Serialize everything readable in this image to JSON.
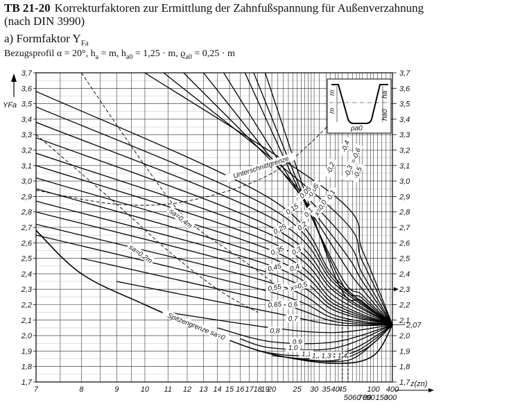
{
  "header": {
    "table_id": "TB 21-20",
    "title_line1": "Korrekturfaktoren zur Ermittlung der Zahnfußspannung für Außenverzahnung",
    "title_line2": "(nach DIN 3990)",
    "section": "a) Formfaktor Y",
    "section_sub": "Fa",
    "profile": "Bezugsprofil α = 20°, h",
    "profile_parts": [
      "a",
      " = m, h",
      "a0",
      " = 1,25 · m, ϱ",
      "a0",
      " = 0,25 · m"
    ]
  },
  "chart_data": {
    "type": "line",
    "title": "Formfaktor YFa",
    "xlabel": "z(zn)",
    "ylabel": "YFa",
    "x_scale": "reciprocal",
    "ylim": [
      1.7,
      3.7
    ],
    "y_ticks": [
      "1,7",
      "1,8",
      "1,9",
      "2,0",
      "2,1",
      "2,2",
      "2,3",
      "2,4",
      "2,5",
      "2,6",
      "2,7",
      "2,8",
      "2,9",
      "3,0",
      "3,1",
      "3,2",
      "3,3",
      "3,4",
      "3,5",
      "3,6",
      "3,7"
    ],
    "x_ticks_upper": [
      {
        "z": 7,
        "label": "7"
      },
      {
        "z": 8,
        "label": "8"
      },
      {
        "z": 9,
        "label": "9"
      },
      {
        "z": 10,
        "label": "10"
      },
      {
        "z": 11,
        "label": "11"
      },
      {
        "z": 12,
        "label": "12"
      },
      {
        "z": 13,
        "label": "13"
      },
      {
        "z": 14,
        "label": "14"
      },
      {
        "z": 15,
        "label": "15"
      },
      {
        "z": 16,
        "label": "16"
      },
      {
        "z": 17,
        "label": "17"
      },
      {
        "z": 18,
        "label": "18"
      },
      {
        "z": 19,
        "label": "19"
      },
      {
        "z": 20,
        "label": "20"
      },
      {
        "z": 25,
        "label": "25"
      },
      {
        "z": 30,
        "label": "30"
      },
      {
        "z": 35,
        "label": "35"
      },
      {
        "z": 40,
        "label": "40"
      },
      {
        "z": 45,
        "label": "45"
      },
      {
        "z": 100,
        "label": "100"
      },
      {
        "z": 400,
        "label": "400"
      }
    ],
    "x_ticks_lower": [
      {
        "z": 50,
        "label": "50"
      },
      {
        "z": 60,
        "label": "60"
      },
      {
        "z": 70,
        "label": "70"
      },
      {
        "z": 80,
        "label": "80"
      },
      {
        "z": 90,
        "label": "90"
      },
      {
        "z": 150,
        "label": "150"
      },
      {
        "z": 300,
        "label": "300"
      }
    ],
    "x_grid_values": [
      7,
      7.5,
      8,
      8.5,
      9,
      9.5,
      10,
      11,
      12,
      13,
      14,
      15,
      16,
      17,
      18,
      19,
      20,
      21,
      22,
      23,
      24,
      25,
      26,
      27,
      28,
      29,
      30,
      32,
      35,
      37,
      40,
      42,
      45,
      50,
      55,
      60,
      65,
      70,
      80,
      90,
      100,
      120,
      150,
      200,
      300,
      400
    ],
    "y_right_extra": "2,07",
    "series": [
      {
        "name": "-0,6",
        "points": [
          [
            10,
            3.7
          ],
          [
            40,
            2.9
          ],
          [
            70,
            2.55
          ],
          [
            400,
            2.07
          ]
        ]
      },
      {
        "name": "-0,5",
        "points": [
          [
            10.8,
            3.7
          ],
          [
            40,
            2.8
          ],
          [
            70,
            2.48
          ],
          [
            400,
            2.07
          ]
        ]
      },
      {
        "name": "-0,4",
        "points": [
          [
            11.8,
            3.7
          ],
          [
            40,
            2.7
          ],
          [
            70,
            2.4
          ],
          [
            400,
            2.07
          ]
        ]
      },
      {
        "name": "-0,3",
        "points": [
          [
            13,
            3.7
          ],
          [
            40,
            2.62
          ],
          [
            70,
            2.35
          ],
          [
            400,
            2.07
          ]
        ]
      },
      {
        "name": "-0,2",
        "points": [
          [
            14.5,
            3.7
          ],
          [
            40,
            2.55
          ],
          [
            70,
            2.3
          ],
          [
            400,
            2.07
          ]
        ]
      },
      {
        "name": "-0,1",
        "points": [
          [
            16.5,
            3.7
          ],
          [
            40,
            2.45
          ],
          [
            70,
            2.26
          ],
          [
            400,
            2.07
          ]
        ]
      },
      {
        "name": "-0,05",
        "points": [
          [
            17.5,
            3.7
          ],
          [
            40,
            2.42
          ],
          [
            70,
            2.24
          ],
          [
            400,
            2.07
          ]
        ]
      },
      {
        "name": "x=0,0",
        "points": [
          [
            19,
            3.7
          ],
          [
            40,
            2.38
          ],
          [
            70,
            2.22
          ],
          [
            400,
            2.07
          ]
        ]
      },
      {
        "name": "0,05",
        "points": [
          [
            7,
            3.58
          ],
          [
            20,
            2.88
          ],
          [
            40,
            2.37
          ],
          [
            400,
            2.07
          ]
        ]
      },
      {
        "name": "0,1",
        "points": [
          [
            7,
            3.48
          ],
          [
            20,
            2.82
          ],
          [
            40,
            2.35
          ],
          [
            400,
            2.07
          ]
        ]
      },
      {
        "name": "0,15",
        "points": [
          [
            7,
            3.38
          ],
          [
            20,
            2.76
          ],
          [
            40,
            2.33
          ],
          [
            400,
            2.07
          ]
        ]
      },
      {
        "name": "0,2",
        "points": [
          [
            7,
            3.28
          ],
          [
            20,
            2.7
          ],
          [
            40,
            2.3
          ],
          [
            400,
            2.07
          ]
        ]
      },
      {
        "name": "0,25",
        "points": [
          [
            7,
            3.18
          ],
          [
            20,
            2.65
          ],
          [
            40,
            2.28
          ],
          [
            400,
            2.07
          ]
        ]
      },
      {
        "name": "0,3",
        "points": [
          [
            7,
            3.1
          ],
          [
            20,
            2.6
          ],
          [
            40,
            2.25
          ],
          [
            400,
            2.07
          ]
        ]
      },
      {
        "name": "0,35",
        "points": [
          [
            7,
            3.02
          ],
          [
            20,
            2.55
          ],
          [
            40,
            2.22
          ],
          [
            400,
            2.07
          ]
        ]
      },
      {
        "name": "0,4",
        "points": [
          [
            7,
            2.95
          ],
          [
            20,
            2.5
          ],
          [
            40,
            2.2
          ],
          [
            400,
            2.07
          ]
        ]
      },
      {
        "name": "0,45",
        "points": [
          [
            7,
            2.87
          ],
          [
            20,
            2.45
          ],
          [
            40,
            2.18
          ],
          [
            400,
            2.07
          ]
        ]
      },
      {
        "name": "x=0,5",
        "points": [
          [
            7,
            2.8
          ],
          [
            20,
            2.4
          ],
          [
            40,
            2.16
          ],
          [
            400,
            2.07
          ]
        ]
      },
      {
        "name": "0,55",
        "points": [
          [
            7,
            2.72
          ],
          [
            20,
            2.34
          ],
          [
            40,
            2.13
          ],
          [
            400,
            2.07
          ]
        ]
      },
      {
        "name": "0,6",
        "points": [
          [
            7,
            2.65
          ],
          [
            20,
            2.28
          ],
          [
            40,
            2.11
          ],
          [
            400,
            2.07
          ]
        ]
      },
      {
        "name": "0,65",
        "points": [
          [
            8,
            2.5
          ],
          [
            20,
            2.22
          ],
          [
            40,
            2.09
          ],
          [
            400,
            2.07
          ]
        ]
      },
      {
        "name": "0,7",
        "points": [
          [
            9,
            2.35
          ],
          [
            20,
            2.15
          ],
          [
            40,
            2.07
          ],
          [
            400,
            2.07
          ]
        ]
      },
      {
        "name": "0,8",
        "points": [
          [
            11,
            2.15
          ],
          [
            20,
            2.05
          ],
          [
            40,
            2.02
          ],
          [
            400,
            2.07
          ]
        ]
      },
      {
        "name": "0,9",
        "points": [
          [
            14,
            2.05
          ],
          [
            20,
            1.96
          ],
          [
            40,
            1.96
          ],
          [
            400,
            2.07
          ]
        ]
      },
      {
        "name": "1,0",
        "points": [
          [
            16,
            1.98
          ],
          [
            20,
            1.92
          ],
          [
            40,
            1.92
          ],
          [
            400,
            2.07
          ]
        ]
      },
      {
        "name": "1,1",
        "points": [
          [
            18,
            1.9
          ],
          [
            25,
            1.87
          ],
          [
            50,
            1.9
          ],
          [
            400,
            2.07
          ]
        ]
      },
      {
        "name": "1,2",
        "points": [
          [
            20,
            1.87
          ],
          [
            30,
            1.85
          ],
          [
            60,
            1.9
          ],
          [
            400,
            2.07
          ]
        ]
      },
      {
        "name": "1,3",
        "points": [
          [
            24,
            1.85
          ],
          [
            40,
            1.84
          ],
          [
            80,
            1.92
          ],
          [
            400,
            2.07
          ]
        ]
      },
      {
        "name": "1,4",
        "points": [
          [
            28,
            1.84
          ],
          [
            50,
            1.84
          ],
          [
            100,
            1.95
          ],
          [
            400,
            2.07
          ]
        ]
      }
    ],
    "boundaries": [
      {
        "name": "Unterschnittgrenze",
        "style": "dashed",
        "points": [
          [
            7,
            2.94
          ],
          [
            9,
            2.85
          ],
          [
            12,
            2.87
          ],
          [
            20,
            3.05
          ],
          [
            40,
            3.4
          ],
          [
            80,
            3.6
          ]
        ]
      },
      {
        "name": "sa=0,4m",
        "style": "dashed",
        "points": [
          [
            8,
            3.7
          ],
          [
            10,
            3.1
          ],
          [
            12,
            2.75
          ],
          [
            16,
            2.5
          ],
          [
            20,
            2.35
          ]
        ]
      },
      {
        "name": "sa=0,2m",
        "style": "dashed",
        "points": [
          [
            7,
            3.3
          ],
          [
            9,
            2.85
          ],
          [
            11,
            2.55
          ],
          [
            14,
            2.3
          ],
          [
            18,
            2.15
          ]
        ]
      },
      {
        "name": "Spitzengrenze sa=0",
        "style": "solid",
        "points": [
          [
            7,
            2.68
          ],
          [
            8,
            2.4
          ],
          [
            10,
            2.2
          ],
          [
            14,
            2.0
          ],
          [
            20,
            1.88
          ],
          [
            40,
            1.82
          ],
          [
            100,
            1.87
          ],
          [
            400,
            2.07
          ]
        ]
      }
    ],
    "curve_labels": [
      {
        "text": "x=-0,6",
        "z": 60,
        "y": 3.15,
        "rot": -68
      },
      {
        "text": "-0,5",
        "z": 64,
        "y": 3.05,
        "rot": -68
      },
      {
        "text": "-0,4",
        "z": 49,
        "y": 3.22,
        "rot": -70
      },
      {
        "text": "-0,3",
        "z": 52,
        "y": 3.06,
        "rot": -70
      },
      {
        "text": "-0,2",
        "z": 38,
        "y": 3.08,
        "rot": -68
      },
      {
        "text": "-0,1",
        "z": 38,
        "y": 2.9,
        "rot": -62
      },
      {
        "text": "-0,05",
        "z": 30,
        "y": 2.93,
        "rot": -58
      },
      {
        "text": "x=0,0",
        "z": 33,
        "y": 2.82,
        "rot": -58
      },
      {
        "text": "0,05",
        "z": 27.5,
        "y": 2.92,
        "rot": -48
      },
      {
        "text": "0,1",
        "z": 28.5,
        "y": 2.79,
        "rot": -48
      },
      {
        "text": "0,15",
        "z": 24,
        "y": 2.81,
        "rot": -35
      },
      {
        "text": "0,2",
        "z": 26.5,
        "y": 2.7,
        "rot": -38
      },
      {
        "text": "0,25",
        "z": 21.5,
        "y": 2.68,
        "rot": -30
      },
      {
        "text": "0,3",
        "z": 25,
        "y": 2.54,
        "rot": -32
      },
      {
        "text": "0,35",
        "z": 21,
        "y": 2.54,
        "rot": -22
      },
      {
        "text": "0,4",
        "z": 24.5,
        "y": 2.43,
        "rot": -20
      },
      {
        "text": "0,45",
        "z": 20.5,
        "y": 2.43,
        "rot": -15
      },
      {
        "text": "x=0,5",
        "z": 25.5,
        "y": 2.31,
        "rot": -15
      },
      {
        "text": "0,55",
        "z": 20.5,
        "y": 2.3,
        "rot": -10
      },
      {
        "text": "0,6",
        "z": 24,
        "y": 2.19,
        "rot": -8
      },
      {
        "text": "0,65",
        "z": 20.5,
        "y": 2.19,
        "rot": -5
      },
      {
        "text": "0,7",
        "z": 24,
        "y": 2.1,
        "rot": 0
      },
      {
        "text": "0,8",
        "z": 20.5,
        "y": 2.02,
        "rot": 0
      },
      {
        "text": "0,9",
        "z": 25,
        "y": 1.95,
        "rot": 0
      },
      {
        "text": "1,0",
        "z": 24,
        "y": 1.91,
        "rot": 0
      },
      {
        "text": "1,1",
        "z": 27.5,
        "y": 1.87,
        "rot": 0
      },
      {
        "text": "1,2",
        "z": 31,
        "y": 1.86,
        "rot": 0
      },
      {
        "text": "1,3",
        "z": 35,
        "y": 1.86,
        "rot": 0
      },
      {
        "text": "1,4",
        "z": 45,
        "y": 1.86,
        "rot": 0
      },
      {
        "text": "Unterschnittgrenze",
        "z": 18.5,
        "y": 3.08,
        "rot": -18
      },
      {
        "text": "sa=0,4m",
        "z": 11.6,
        "y": 2.75,
        "rot": 38
      },
      {
        "text": "sa=0,2m",
        "z": 9.8,
        "y": 2.52,
        "rot": 35
      },
      {
        "text": "Spitzengrenze sa=0",
        "z": 12.5,
        "y": 2.05,
        "rot": 22
      }
    ],
    "reading_example": {
      "x_from": 45,
      "x_to": 50,
      "y": 2.3
    },
    "inset_labels": {
      "m1": "m",
      "m2": "m",
      "ha0": "ha0",
      "ha": "ha",
      "rho": "ρa0"
    }
  }
}
